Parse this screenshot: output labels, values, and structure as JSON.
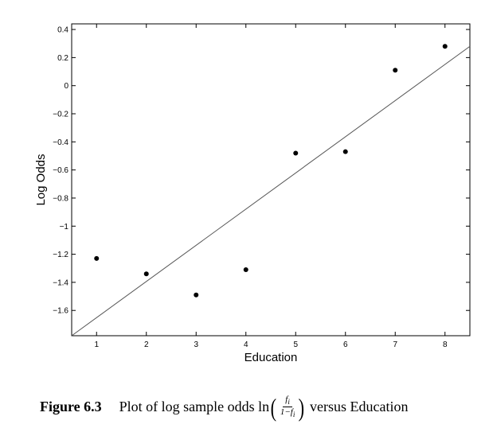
{
  "chart_data": {
    "type": "scatter",
    "xlabel": "Education",
    "ylabel": "Log Odds",
    "xlim": [
      0.5,
      8.5
    ],
    "ylim": [
      -1.78,
      0.44
    ],
    "x_ticks": [
      1,
      2,
      3,
      4,
      5,
      6,
      7,
      8
    ],
    "y_ticks": [
      0.4,
      0.2,
      0,
      -0.2,
      -0.4,
      -0.6,
      -0.8,
      -1,
      -1.2,
      -1.4,
      -1.6
    ],
    "y_tick_labels": [
      "0.4",
      "0.2",
      "0",
      "−0.2",
      "−0.4",
      "−0.6",
      "−0.8",
      "−1",
      "−1.2",
      "−1.4",
      "−1.6"
    ],
    "points": [
      {
        "x": 1,
        "y": -1.23
      },
      {
        "x": 2,
        "y": -1.34
      },
      {
        "x": 3,
        "y": -1.49
      },
      {
        "x": 4,
        "y": -1.31
      },
      {
        "x": 5,
        "y": -0.48
      },
      {
        "x": 6,
        "y": -0.47
      },
      {
        "x": 7,
        "y": 0.11
      },
      {
        "x": 8,
        "y": 0.28
      }
    ],
    "fit_line": {
      "x": [
        0.5,
        8.5
      ],
      "y": [
        -1.78,
        0.28
      ]
    },
    "grid": false,
    "point_color": "#000000",
    "line_color": "#555555"
  },
  "caption": {
    "figure_number": "Figure 6.3",
    "text_before": "Plot of log sample odds ln",
    "frac_num": "f",
    "frac_num_sub": "i",
    "frac_den": "1−f",
    "frac_den_sub": "i",
    "text_after": "versus Education"
  }
}
